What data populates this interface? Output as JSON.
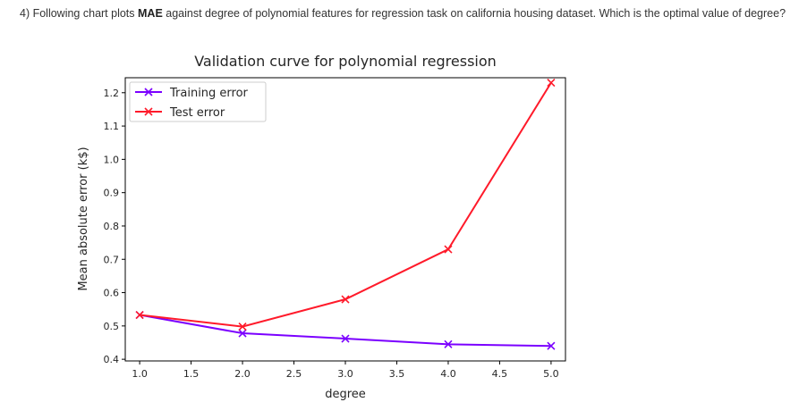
{
  "question": {
    "prefix": "4) Following chart plots ",
    "bold": "MAE",
    "suffix": " against degree of polynomial features for regression task on california housing dataset. Which is the optimal value of degree?"
  },
  "chart_data": {
    "type": "line",
    "title": "Validation curve for polynomial regression",
    "xlabel": "degree",
    "ylabel": "Mean absolute error (k$)",
    "xlim": [
      0.86,
      5.14
    ],
    "ylim": [
      0.395,
      1.245
    ],
    "xticks": [
      1.0,
      1.5,
      2.0,
      2.5,
      3.0,
      3.5,
      4.0,
      4.5,
      5.0
    ],
    "xtick_labels": [
      "1.0",
      "1.5",
      "2.0",
      "2.5",
      "3.0",
      "3.5",
      "4.0",
      "4.5",
      "5.0"
    ],
    "yticks": [
      0.4,
      0.5,
      0.6,
      0.7,
      0.8,
      0.9,
      1.0,
      1.1,
      1.2
    ],
    "ytick_labels": [
      "0.4",
      "0.5",
      "0.6",
      "0.7",
      "0.8",
      "0.9",
      "1.0",
      "1.1",
      "1.2"
    ],
    "x": [
      1,
      2,
      3,
      4,
      5
    ],
    "series": [
      {
        "name": "Training error",
        "color": "#7b00ff",
        "marker": "x",
        "values": [
          0.533,
          0.478,
          0.462,
          0.445,
          0.44
        ]
      },
      {
        "name": "Test error",
        "color": "#ff1a2a",
        "marker": "x",
        "values": [
          0.533,
          0.498,
          0.58,
          0.73,
          1.23
        ]
      }
    ],
    "legend": "upper-left",
    "grid": false
  }
}
